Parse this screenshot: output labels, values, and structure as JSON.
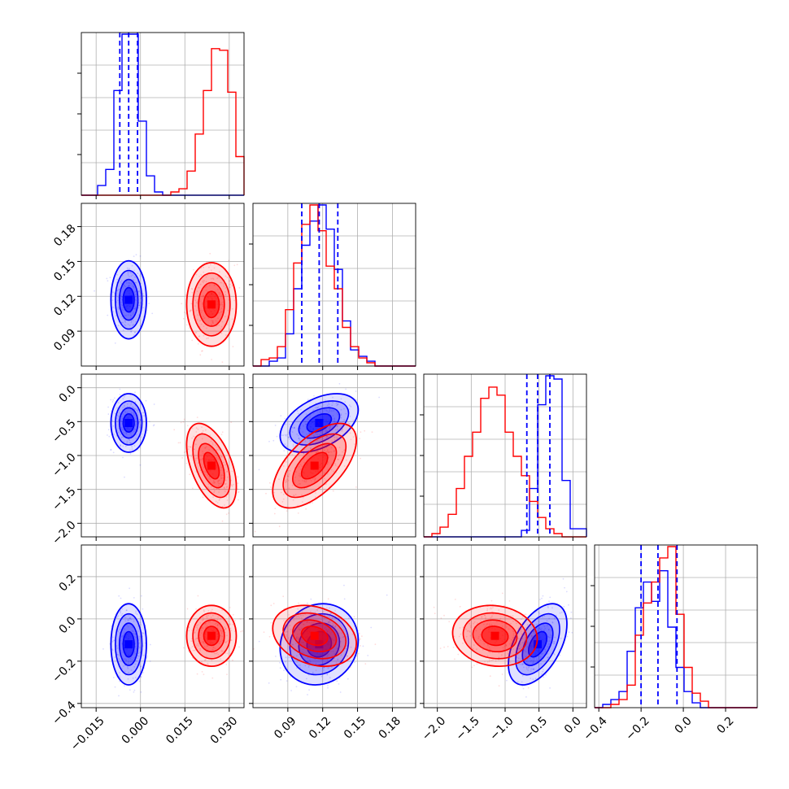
{
  "colors": {
    "series_a": "#0000ff",
    "series_b": "#ff0000",
    "grid": "#b0b0b0",
    "frame": "#000000"
  },
  "chart_data": {
    "type": "corner",
    "grid": true,
    "parameters": [
      {
        "range": [
          -0.02,
          0.035
        ],
        "ticks": [
          -0.015,
          0.0,
          0.015,
          0.03
        ],
        "tick_labels": [
          "−0.015",
          "0.000",
          "0.015",
          "0.030"
        ]
      },
      {
        "range": [
          0.06,
          0.2
        ],
        "ticks": [
          0.09,
          0.12,
          0.15,
          0.18
        ],
        "tick_labels": [
          "0.09",
          "0.12",
          "0.15",
          "0.18"
        ]
      },
      {
        "range": [
          -2.2,
          0.2
        ],
        "ticks": [
          -2.0,
          -1.5,
          -1.0,
          -0.5,
          0.0
        ],
        "tick_labels": [
          "−2.0",
          "−1.5",
          "−1.0",
          "−0.5",
          "0.0"
        ]
      },
      {
        "range": [
          -0.42,
          0.35
        ],
        "ticks": [
          -0.4,
          -0.2,
          0.0,
          0.2
        ],
        "tick_labels": [
          "−0.4",
          "−0.2",
          "0.0",
          "0.2"
        ]
      }
    ],
    "series": [
      {
        "color": "#0000ff",
        "mean": [
          -0.004,
          0.117,
          -0.52,
          -0.12
        ],
        "sd": [
          0.0025,
          0.014,
          0.18,
          0.08
        ],
        "corr": [
          [
            1,
            0,
            0,
            0
          ],
          [
            0,
            1,
            0.45,
            0.1
          ],
          [
            0,
            0.45,
            1,
            0.5
          ],
          [
            0,
            0.1,
            0.5,
            1
          ]
        ],
        "quantiles": [
          [
            -0.007,
            -0.004,
            -0.001
          ],
          [
            0.102,
            0.117,
            0.133
          ],
          [
            -0.68,
            -0.52,
            -0.34
          ],
          [
            -0.2,
            -0.12,
            -0.03
          ]
        ],
        "hist": [
          [
            0.0,
            0.0,
            0.06,
            0.16,
            0.65,
            1.0,
            1.0,
            0.46,
            0.12,
            0.02,
            0.0,
            0.0,
            0.0,
            0.0,
            0.0,
            0.0,
            0.0,
            0.0,
            0.0,
            0.0
          ],
          [
            0.0,
            0.0,
            0.03,
            0.05,
            0.2,
            0.48,
            0.75,
            0.9,
            1.0,
            0.85,
            0.6,
            0.28,
            0.1,
            0.06,
            0.03,
            0.0,
            0.0,
            0.0,
            0.0,
            0.0
          ],
          [
            0.0,
            0.0,
            0.0,
            0.0,
            0.0,
            0.0,
            0.0,
            0.0,
            0.0,
            0.0,
            0.0,
            0.0,
            0.04,
            0.3,
            0.82,
            1.0,
            0.98,
            0.35,
            0.05,
            0.05
          ],
          [
            0.0,
            0.02,
            0.05,
            0.1,
            0.35,
            0.62,
            0.78,
            0.66,
            0.85,
            0.5,
            0.25,
            0.1,
            0.03,
            0.0,
            0.0,
            0.0,
            0.0,
            0.0,
            0.0,
            0.0
          ]
        ]
      },
      {
        "color": "#ff0000",
        "mean": [
          0.024,
          0.113,
          -1.15,
          -0.08
        ],
        "sd": [
          0.0035,
          0.015,
          0.26,
          0.06
        ],
        "corr": [
          [
            1,
            0,
            -0.5,
            0
          ],
          [
            0,
            1,
            0.6,
            -0.25
          ],
          [
            -0.5,
            0.6,
            1,
            -0.1
          ],
          [
            0,
            -0.25,
            -0.1,
            1
          ]
        ],
        "hist": [
          [
            0.0,
            0.0,
            0.0,
            0.0,
            0.0,
            0.0,
            0.0,
            0.0,
            0.0,
            0.0,
            0.0,
            0.02,
            0.04,
            0.15,
            0.38,
            0.65,
            0.91,
            0.9,
            0.64,
            0.24
          ],
          [
            0.0,
            0.04,
            0.05,
            0.12,
            0.35,
            0.64,
            0.88,
            1.0,
            0.84,
            0.62,
            0.48,
            0.24,
            0.12,
            0.05,
            0.02,
            0.0,
            0.0,
            0.0,
            0.0,
            0.0
          ],
          [
            0.0,
            0.02,
            0.06,
            0.14,
            0.3,
            0.5,
            0.65,
            0.86,
            0.93,
            0.88,
            0.65,
            0.5,
            0.38,
            0.22,
            0.12,
            0.05,
            0.02,
            0.0,
            0.0,
            0.0
          ],
          [
            0.0,
            0.0,
            0.02,
            0.05,
            0.14,
            0.45,
            0.65,
            0.78,
            0.93,
            1.0,
            0.58,
            0.25,
            0.09,
            0.04,
            0.0,
            0.0,
            0.0,
            0.0,
            0.0,
            0.0
          ]
        ]
      }
    ]
  }
}
